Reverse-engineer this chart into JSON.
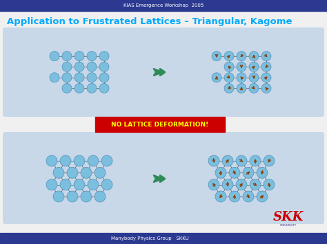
{
  "bg_color": "#f0f0f0",
  "header_color": "#2B3990",
  "footer_color": "#2B3990",
  "header_text": "KIAS Emergence Workshop  2005",
  "footer_text": "Manybody Physics Group   SKKU",
  "title_text": "Application to Frustrated Lattices – Triangular, Kagome",
  "title_color": "#00AAFF",
  "panel_bg": "#C8D8E8",
  "node_color": "#7BBEDD",
  "node_edge": "#5090BB",
  "spin_color": "#8B3A00",
  "arrow_green": "#2E8B57",
  "no_lattice_bg": "#CC0000",
  "no_lattice_text": "NO LATTICE DEFORMATION!",
  "no_lattice_text_color": "#FFFF00",
  "bond_color": "#666666",
  "figw": 4.74,
  "figh": 3.55,
  "dpi": 100
}
